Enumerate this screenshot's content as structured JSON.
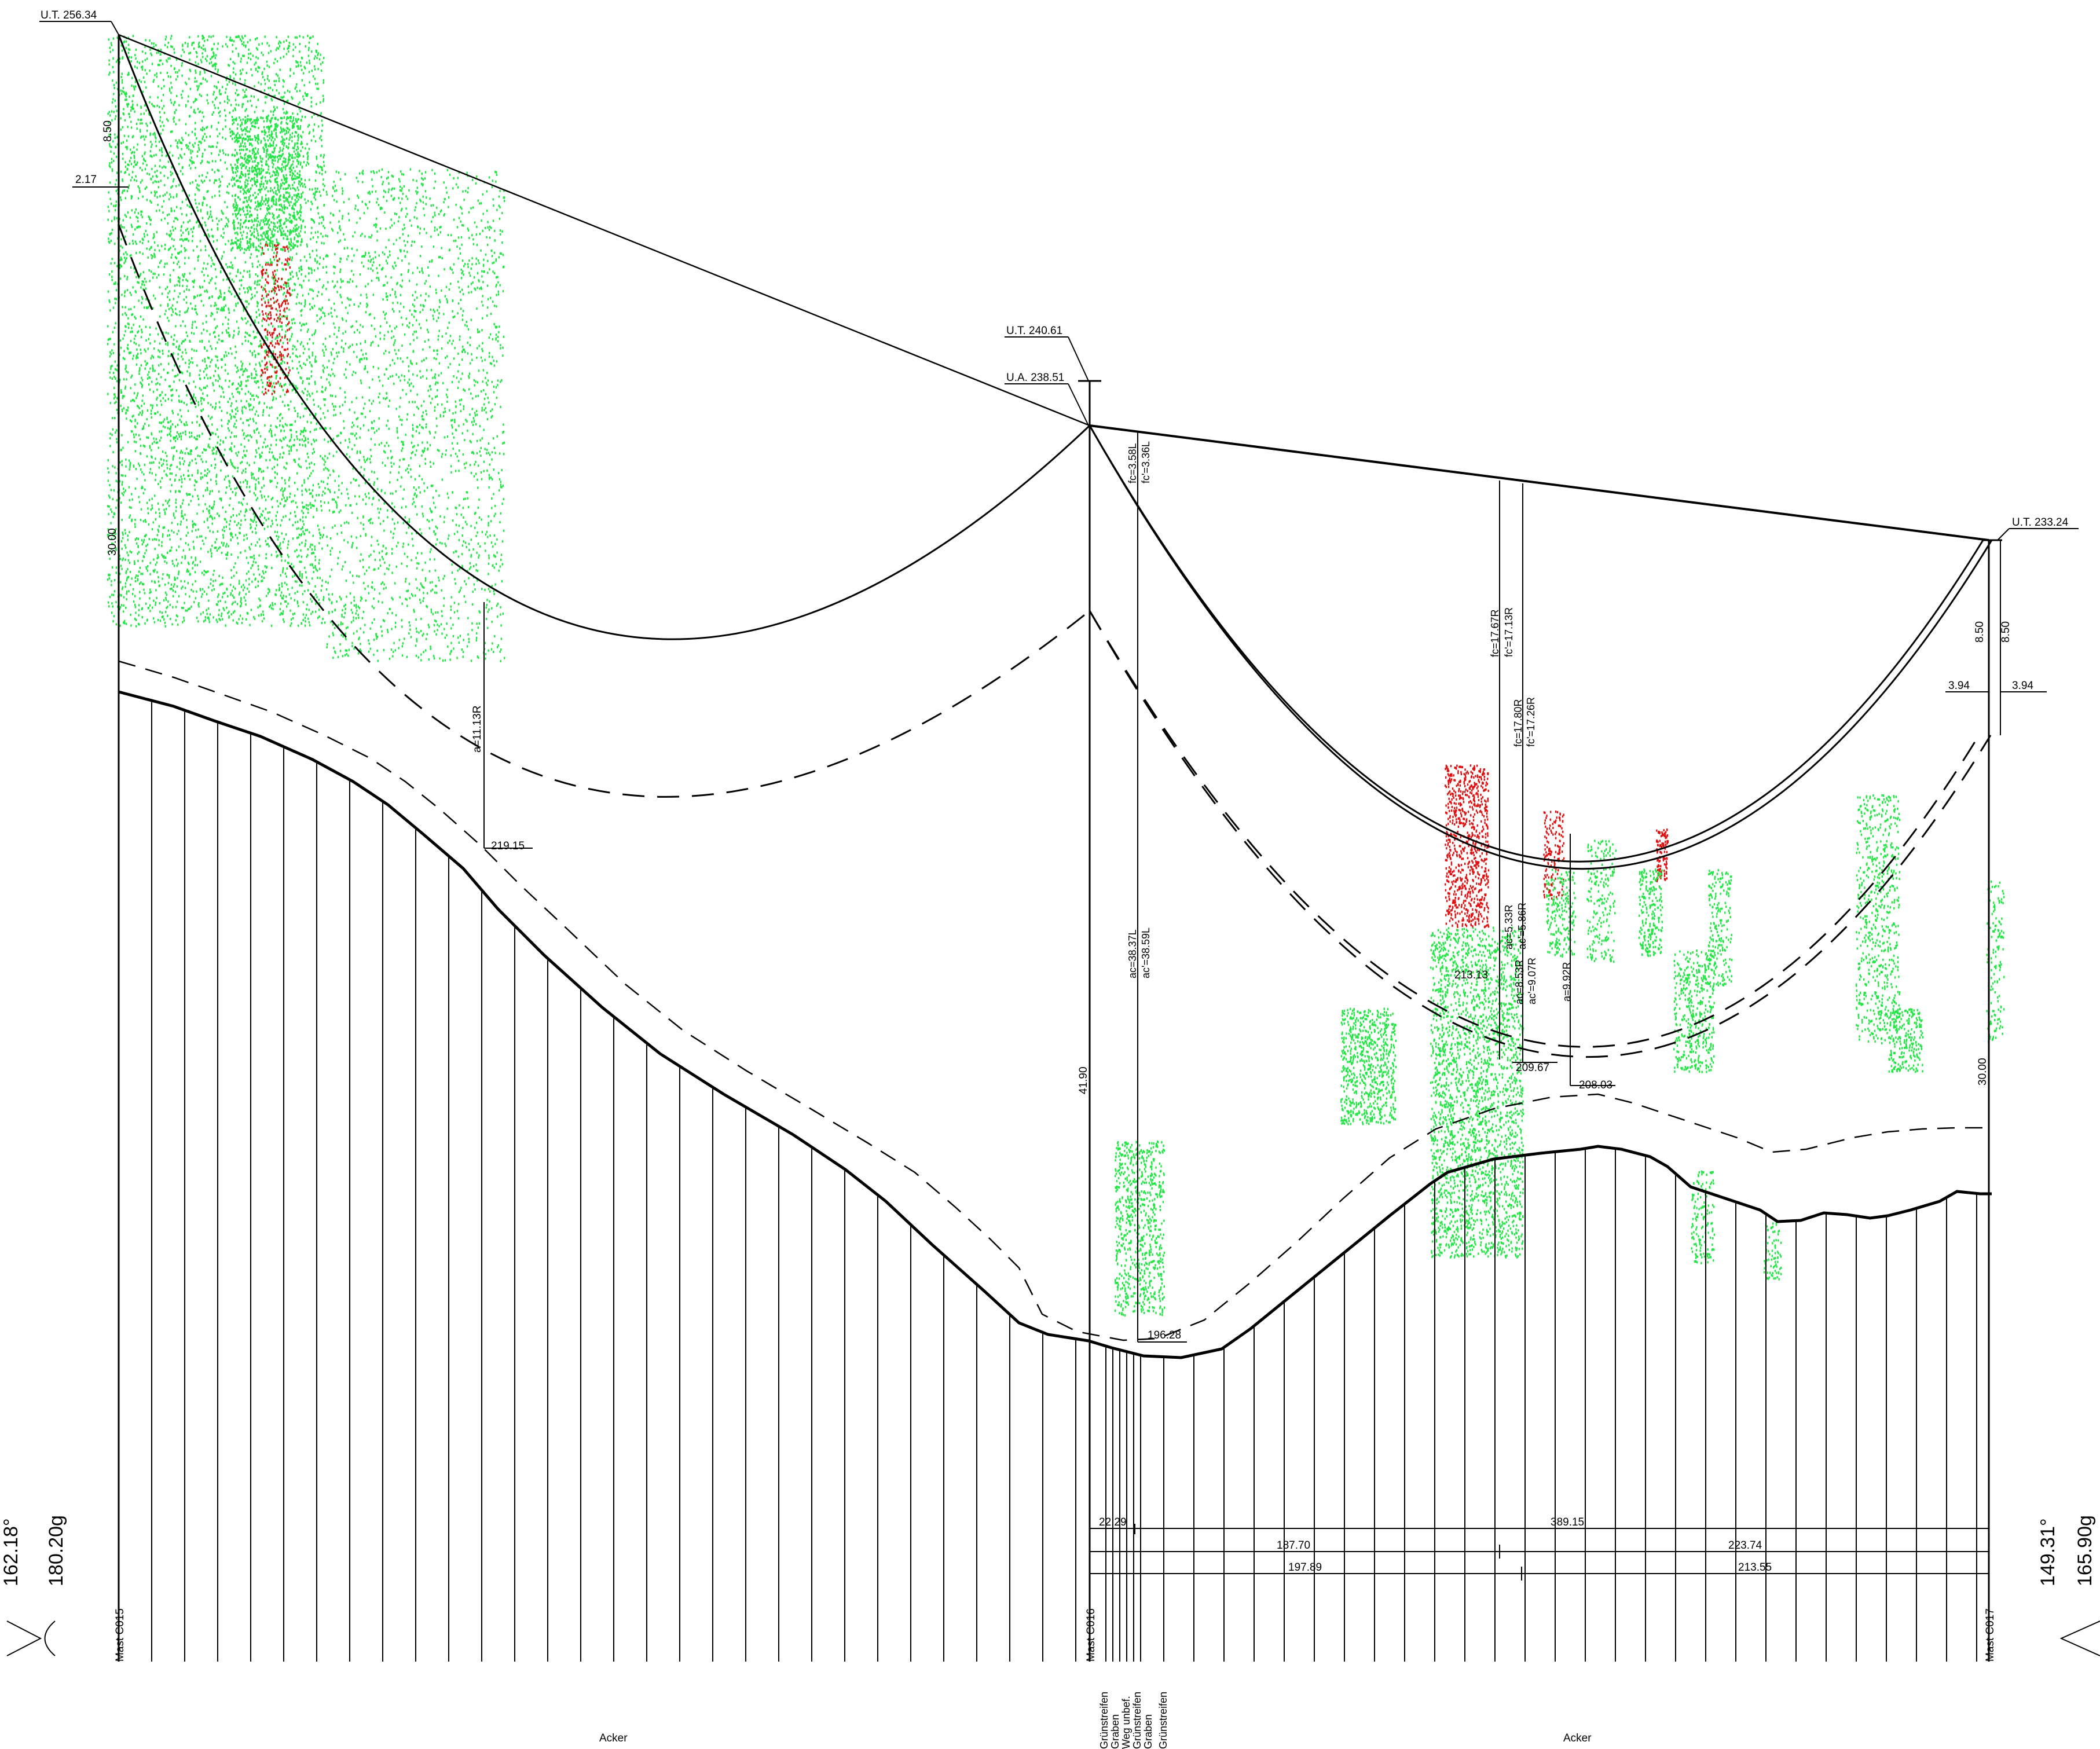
{
  "profile": {
    "masts": [
      {
        "name": "Mast C015",
        "ut": "U.T. 256.34"
      },
      {
        "name": "Mast C016",
        "ut": "U.T. 240.61",
        "ua": "U.A. 238.51"
      },
      {
        "name": "Mast C017",
        "ut": "U.T. 233.24"
      }
    ],
    "dims": {
      "d_8_50_left": "8.50",
      "d_2_17": "2.17",
      "d_30_00_left": "30.00",
      "a_11_13": "a=11.13R",
      "e_219_15": "219.15",
      "fc_3_58": "fc=3.58L",
      "fcp_3_36": "fc'=3.36L",
      "ac_38_37": "ac=38.37L",
      "acp_38_59": "ac'=38.59L",
      "d_41_90": "41.90",
      "e_196_28": "196.28",
      "fc_17_67": "fc=17.67R",
      "fcp_17_13": "fc'=17.13R",
      "fc_17_80": "fc=17.80R",
      "fcp_17_26": "fc'=17.26R",
      "ac_5_33": "ac=5.33R",
      "acp_5_86": "ac'=5.86R",
      "ac_8_53": "ac=8.53R",
      "acp_9_07": "ac'=9.07R",
      "a_9_92": "a=9.92R",
      "e_213_13": "213.13",
      "e_209_67": "209.67",
      "e_208_03": "208.03",
      "d_8_50_r1": "8.50",
      "d_8_50_r2": "8.50",
      "d_3_94_a": "3.94",
      "d_3_94_b": "3.94",
      "d_30_00_right": "30.00",
      "s_22_29": "22.29",
      "s_389_15": "389.15",
      "s_187_70": "187.70",
      "s_223_74": "223.74",
      "s_197_89": "197.89",
      "s_213_55": "213.55"
    },
    "angles": {
      "left_deg": "162.18°",
      "left_gon": "180.20g",
      "right_deg": "149.31°",
      "right_gon": "165.90g"
    },
    "ground": {
      "left_use": "Acker",
      "right_use": "Acker",
      "features": [
        "Grünstreifen",
        "Graben",
        "Weg unbef.",
        "Grünstreifen",
        "Graben",
        "Grünstreifen"
      ]
    },
    "colors": {
      "vegetation": "#22e644",
      "vegetation_conflict": "#e11010",
      "line": "#000000"
    }
  }
}
